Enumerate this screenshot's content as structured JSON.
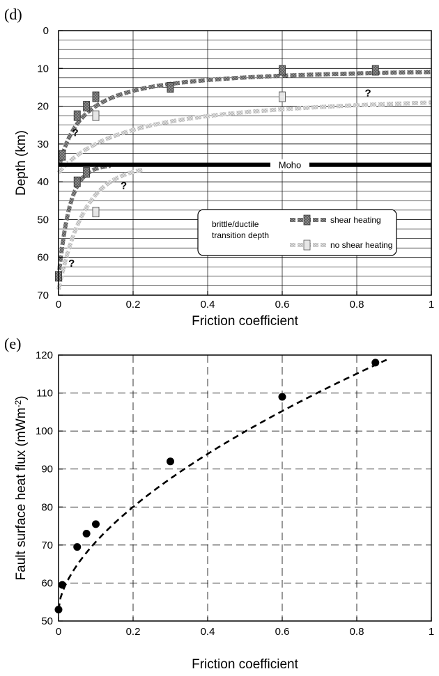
{
  "chart_data": [
    {
      "panel": "(d)",
      "type": "line",
      "xlabel": "Friction coefficient",
      "ylabel": "Depth (km)",
      "xlim": [
        0,
        1
      ],
      "ylim": [
        70,
        0
      ],
      "y_inverted": true,
      "xticks": [
        "0",
        "0.2",
        "0.4",
        "0.6",
        "0.8",
        "1"
      ],
      "yticks": [
        "0",
        "10",
        "20",
        "30",
        "40",
        "50",
        "60",
        "70"
      ],
      "grid": true,
      "moho": {
        "label": "Moho",
        "depth": 35.5
      },
      "legend": {
        "position": "bottom-right",
        "caption_lines": [
          "brittle/ductile",
          "transition depth"
        ],
        "entries": [
          "shear heating",
          "no shear heating"
        ]
      },
      "series": [
        {
          "name": "shear heating",
          "color": "#7a7a7a",
          "upper_points": {
            "x": [
              0.01,
              0.05,
              0.075,
              0.1,
              0.3,
              0.6,
              0.85
            ],
            "y": [
              33,
              22.5,
              20,
              17.5,
              15,
              10.5,
              10.5
            ]
          },
          "lower_points": {
            "x": [
              0.0,
              0.05,
              0.075
            ],
            "y": [
              65,
              40,
              37.5
            ]
          }
        },
        {
          "name": "no shear heating",
          "color": "#cfcfcf",
          "upper_points": {
            "x": [
              0.1,
              0.6
            ],
            "y": [
              22.5,
              17.5
            ]
          },
          "lower_points": {
            "x": [
              0.1
            ],
            "y": [
              48
            ]
          }
        }
      ],
      "annotations": [
        {
          "text": "?",
          "x": 0.045,
          "y": 27
        },
        {
          "text": "?",
          "x": 0.175,
          "y": 41
        },
        {
          "text": "?",
          "x": 0.035,
          "y": 61.5
        },
        {
          "text": "?",
          "x": 0.83,
          "y": 16.5
        }
      ]
    },
    {
      "panel": "(e)",
      "type": "scatter",
      "xlabel": "Friction coefficient",
      "ylabel": "Fault surface heat flux (mWm-2)",
      "ylabel_main": "Fault surface heat flux (mWm",
      "ylabel_sup": "-2",
      "ylabel_end": ")",
      "xlim": [
        0,
        1
      ],
      "ylim": [
        50,
        120
      ],
      "xticks": [
        "0",
        "0.2",
        "0.4",
        "0.6",
        "0.8",
        "1"
      ],
      "yticks": [
        "50",
        "60",
        "70",
        "80",
        "90",
        "100",
        "110",
        "120"
      ],
      "grid": true,
      "series": [
        {
          "x": [
            0.0,
            0.01,
            0.05,
            0.075,
            0.1,
            0.3,
            0.6,
            0.85
          ],
          "y": [
            53,
            59.5,
            69.5,
            73,
            75.5,
            92,
            109,
            118
          ]
        }
      ],
      "fit_curve": {
        "style": "dashed",
        "x_range": [
          0,
          0.88
        ]
      }
    }
  ]
}
